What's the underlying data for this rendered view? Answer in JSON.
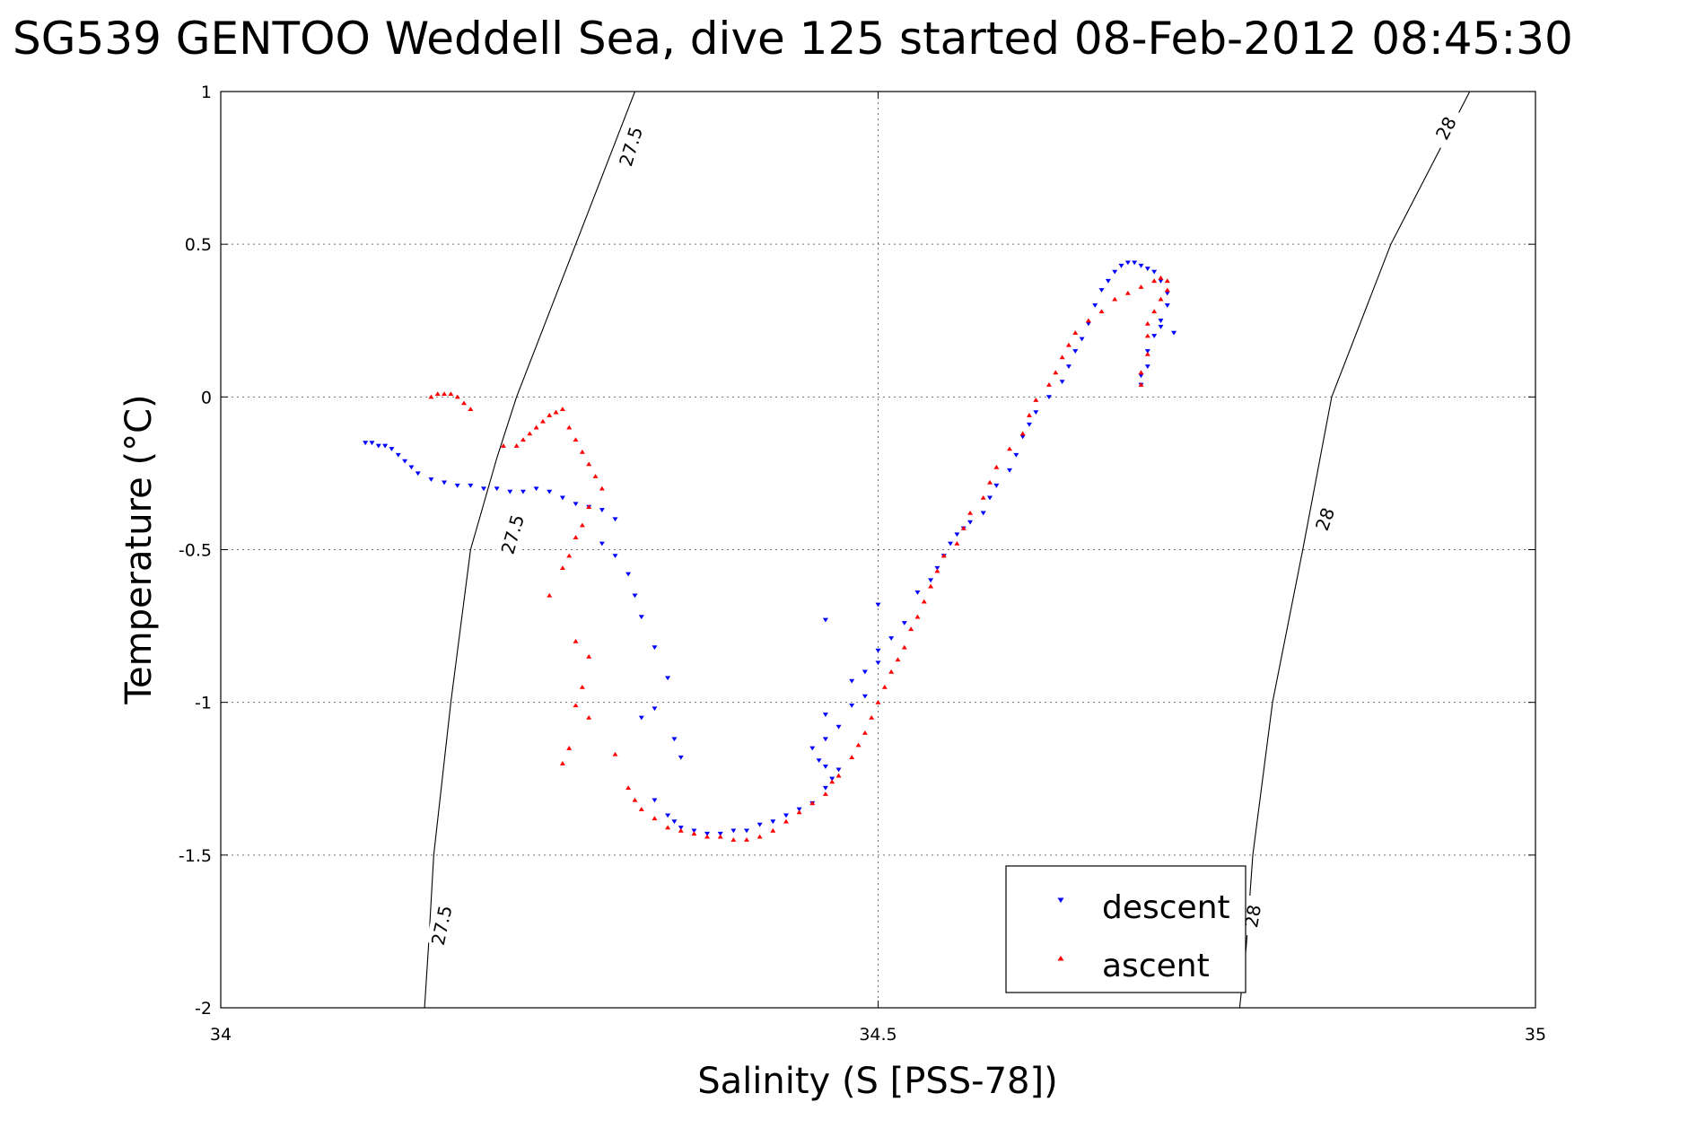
{
  "chart_data": {
    "type": "scatter",
    "title": "SG539 GENTOO Weddell Sea, dive 125 started 08-Feb-2012 08:45:30",
    "xlabel": "Salinity (S [PSS-78])",
    "ylabel": "Temperature (°C)",
    "xlim": [
      34,
      35
    ],
    "ylim": [
      -2,
      1
    ],
    "xticks": [
      34,
      34.5,
      35
    ],
    "xtick_labels": [
      "34",
      "34.5",
      "35"
    ],
    "yticks": [
      1,
      0.5,
      0,
      -0.5,
      -1,
      -1.5,
      -2
    ],
    "ytick_labels": [
      "1",
      "0.5",
      "0",
      "-0.5",
      "-1",
      "-1.5",
      "-2"
    ],
    "grid": true,
    "legend_position": "bottom-right",
    "colors": {
      "descent": "#0000ff",
      "ascent": "#ff0000"
    },
    "series": [
      {
        "name": "descent",
        "marker": "triangle-down",
        "points": [
          [
            34.11,
            -0.15
          ],
          [
            34.115,
            -0.15
          ],
          [
            34.12,
            -0.16
          ],
          [
            34.125,
            -0.16
          ],
          [
            34.13,
            -0.17
          ],
          [
            34.135,
            -0.19
          ],
          [
            34.14,
            -0.21
          ],
          [
            34.145,
            -0.23
          ],
          [
            34.15,
            -0.25
          ],
          [
            34.16,
            -0.27
          ],
          [
            34.17,
            -0.28
          ],
          [
            34.18,
            -0.29
          ],
          [
            34.19,
            -0.29
          ],
          [
            34.2,
            -0.3
          ],
          [
            34.21,
            -0.3
          ],
          [
            34.22,
            -0.31
          ],
          [
            34.23,
            -0.31
          ],
          [
            34.24,
            -0.3
          ],
          [
            34.25,
            -0.31
          ],
          [
            34.26,
            -0.33
          ],
          [
            34.27,
            -0.35
          ],
          [
            34.28,
            -0.36
          ],
          [
            34.29,
            -0.37
          ],
          [
            34.3,
            -0.4
          ],
          [
            34.29,
            -0.48
          ],
          [
            34.3,
            -0.52
          ],
          [
            34.31,
            -0.58
          ],
          [
            34.315,
            -0.65
          ],
          [
            34.32,
            -0.72
          ],
          [
            34.33,
            -0.82
          ],
          [
            34.34,
            -0.92
          ],
          [
            34.33,
            -1.02
          ],
          [
            34.32,
            -1.05
          ],
          [
            34.345,
            -1.12
          ],
          [
            34.35,
            -1.18
          ],
          [
            34.33,
            -1.32
          ],
          [
            34.34,
            -1.37
          ],
          [
            34.345,
            -1.39
          ],
          [
            34.35,
            -1.41
          ],
          [
            34.36,
            -1.42
          ],
          [
            34.37,
            -1.43
          ],
          [
            34.38,
            -1.43
          ],
          [
            34.39,
            -1.42
          ],
          [
            34.4,
            -1.42
          ],
          [
            34.41,
            -1.4
          ],
          [
            34.42,
            -1.39
          ],
          [
            34.43,
            -1.37
          ],
          [
            34.44,
            -1.35
          ],
          [
            34.45,
            -1.33
          ],
          [
            34.46,
            -1.28
          ],
          [
            34.465,
            -1.25
          ],
          [
            34.47,
            -1.22
          ],
          [
            34.46,
            -1.21
          ],
          [
            34.455,
            -1.19
          ],
          [
            34.45,
            -1.15
          ],
          [
            34.46,
            -1.12
          ],
          [
            34.47,
            -1.08
          ],
          [
            34.46,
            -1.04
          ],
          [
            34.48,
            -1.01
          ],
          [
            34.49,
            -0.98
          ],
          [
            34.48,
            -0.93
          ],
          [
            34.49,
            -0.9
          ],
          [
            34.5,
            -0.87
          ],
          [
            34.5,
            -0.83
          ],
          [
            34.51,
            -0.79
          ],
          [
            34.52,
            -0.74
          ],
          [
            34.46,
            -0.73
          ],
          [
            34.5,
            -0.68
          ],
          [
            34.53,
            -0.64
          ],
          [
            34.54,
            -0.6
          ],
          [
            34.545,
            -0.56
          ],
          [
            34.55,
            -0.52
          ],
          [
            34.555,
            -0.48
          ],
          [
            34.56,
            -0.45
          ],
          [
            34.565,
            -0.43
          ],
          [
            34.57,
            -0.41
          ],
          [
            34.58,
            -0.38
          ],
          [
            34.585,
            -0.33
          ],
          [
            34.59,
            -0.29
          ],
          [
            34.6,
            -0.24
          ],
          [
            34.605,
            -0.19
          ],
          [
            34.61,
            -0.13
          ],
          [
            34.615,
            -0.09
          ],
          [
            34.62,
            -0.05
          ],
          [
            34.63,
            0.0
          ],
          [
            34.64,
            0.05
          ],
          [
            34.645,
            0.1
          ],
          [
            34.65,
            0.15
          ],
          [
            34.655,
            0.19
          ],
          [
            34.66,
            0.24
          ],
          [
            34.665,
            0.3
          ],
          [
            34.67,
            0.35
          ],
          [
            34.675,
            0.38
          ],
          [
            34.68,
            0.41
          ],
          [
            34.685,
            0.43
          ],
          [
            34.69,
            0.44
          ],
          [
            34.695,
            0.44
          ],
          [
            34.7,
            0.43
          ],
          [
            34.705,
            0.42
          ],
          [
            34.71,
            0.41
          ],
          [
            34.715,
            0.38
          ],
          [
            34.72,
            0.34
          ],
          [
            34.72,
            0.3
          ],
          [
            34.715,
            0.25
          ],
          [
            34.71,
            0.2
          ],
          [
            34.705,
            0.15
          ],
          [
            34.705,
            0.1
          ],
          [
            34.7,
            0.07
          ],
          [
            34.7,
            0.04
          ],
          [
            34.725,
            0.21
          ],
          [
            34.715,
            0.23
          ]
        ]
      },
      {
        "name": "ascent",
        "marker": "triangle-up",
        "points": [
          [
            34.16,
            0.0
          ],
          [
            34.165,
            0.01
          ],
          [
            34.17,
            0.01
          ],
          [
            34.175,
            0.01
          ],
          [
            34.18,
            0.0
          ],
          [
            34.185,
            -0.02
          ],
          [
            34.19,
            -0.04
          ],
          [
            34.215,
            -0.16
          ],
          [
            34.225,
            -0.16
          ],
          [
            34.23,
            -0.14
          ],
          [
            34.235,
            -0.12
          ],
          [
            34.24,
            -0.1
          ],
          [
            34.245,
            -0.08
          ],
          [
            34.25,
            -0.06
          ],
          [
            34.255,
            -0.05
          ],
          [
            34.26,
            -0.04
          ],
          [
            34.265,
            -0.1
          ],
          [
            34.27,
            -0.14
          ],
          [
            34.275,
            -0.18
          ],
          [
            34.28,
            -0.22
          ],
          [
            34.285,
            -0.26
          ],
          [
            34.29,
            -0.3
          ],
          [
            34.28,
            -0.36
          ],
          [
            34.275,
            -0.42
          ],
          [
            34.27,
            -0.46
          ],
          [
            34.265,
            -0.52
          ],
          [
            34.26,
            -0.56
          ],
          [
            34.25,
            -0.65
          ],
          [
            34.27,
            -0.8
          ],
          [
            34.28,
            -0.85
          ],
          [
            34.275,
            -0.95
          ],
          [
            34.27,
            -1.01
          ],
          [
            34.28,
            -1.05
          ],
          [
            34.265,
            -1.15
          ],
          [
            34.26,
            -1.2
          ],
          [
            34.3,
            -1.17
          ],
          [
            34.31,
            -1.28
          ],
          [
            34.315,
            -1.32
          ],
          [
            34.32,
            -1.35
          ],
          [
            34.33,
            -1.38
          ],
          [
            34.34,
            -1.41
          ],
          [
            34.35,
            -1.42
          ],
          [
            34.36,
            -1.43
          ],
          [
            34.37,
            -1.44
          ],
          [
            34.38,
            -1.44
          ],
          [
            34.39,
            -1.45
          ],
          [
            34.4,
            -1.45
          ],
          [
            34.41,
            -1.44
          ],
          [
            34.42,
            -1.42
          ],
          [
            34.43,
            -1.39
          ],
          [
            34.44,
            -1.36
          ],
          [
            34.45,
            -1.33
          ],
          [
            34.46,
            -1.3
          ],
          [
            34.465,
            -1.26
          ],
          [
            34.47,
            -1.24
          ],
          [
            34.48,
            -1.18
          ],
          [
            34.485,
            -1.14
          ],
          [
            34.49,
            -1.1
          ],
          [
            34.495,
            -1.05
          ],
          [
            34.5,
            -1.0
          ],
          [
            34.505,
            -0.95
          ],
          [
            34.51,
            -0.9
          ],
          [
            34.515,
            -0.86
          ],
          [
            34.52,
            -0.82
          ],
          [
            34.525,
            -0.76
          ],
          [
            34.53,
            -0.72
          ],
          [
            34.535,
            -0.67
          ],
          [
            34.54,
            -0.62
          ],
          [
            34.545,
            -0.57
          ],
          [
            34.55,
            -0.52
          ],
          [
            34.56,
            -0.48
          ],
          [
            34.565,
            -0.43
          ],
          [
            34.57,
            -0.38
          ],
          [
            34.58,
            -0.33
          ],
          [
            34.585,
            -0.28
          ],
          [
            34.59,
            -0.23
          ],
          [
            34.6,
            -0.17
          ],
          [
            34.61,
            -0.12
          ],
          [
            34.615,
            -0.06
          ],
          [
            34.62,
            -0.01
          ],
          [
            34.63,
            0.04
          ],
          [
            34.635,
            0.08
          ],
          [
            34.64,
            0.13
          ],
          [
            34.645,
            0.17
          ],
          [
            34.65,
            0.21
          ],
          [
            34.66,
            0.25
          ],
          [
            34.67,
            0.28
          ],
          [
            34.68,
            0.32
          ],
          [
            34.69,
            0.34
          ],
          [
            34.7,
            0.36
          ],
          [
            34.71,
            0.38
          ],
          [
            34.715,
            0.39
          ],
          [
            34.72,
            0.38
          ],
          [
            34.72,
            0.35
          ],
          [
            34.715,
            0.32
          ],
          [
            34.71,
            0.28
          ],
          [
            34.705,
            0.24
          ],
          [
            34.705,
            0.2
          ],
          [
            34.705,
            0.14
          ],
          [
            34.7,
            0.08
          ],
          [
            34.7,
            0.04
          ]
        ]
      }
    ],
    "contours": [
      {
        "label": "27.5",
        "points": [
          [
            34.315,
            1.0
          ],
          [
            34.27,
            0.5
          ],
          [
            34.225,
            0.0
          ],
          [
            34.21,
            -0.2
          ],
          [
            34.19,
            -0.5
          ],
          [
            34.175,
            -1.0
          ],
          [
            34.162,
            -1.5
          ],
          [
            34.158,
            -1.8
          ],
          [
            34.155,
            -2.0
          ]
        ],
        "label_positions": [
          [
            34.312,
            0.82,
            -73
          ],
          [
            34.222,
            -0.45,
            -74
          ],
          [
            34.168,
            -1.73,
            -78
          ]
        ]
      },
      {
        "label": "28",
        "points": [
          [
            34.95,
            1.0
          ],
          [
            34.89,
            0.5
          ],
          [
            34.845,
            0.0
          ],
          [
            34.823,
            -0.5
          ],
          [
            34.8,
            -1.0
          ],
          [
            34.785,
            -1.5
          ],
          [
            34.78,
            -1.8
          ],
          [
            34.775,
            -2.0
          ]
        ],
        "label_positions": [
          [
            34.932,
            0.88,
            -62
          ],
          [
            34.84,
            -0.4,
            -70
          ],
          [
            34.785,
            -1.7,
            -80
          ]
        ]
      }
    ]
  }
}
